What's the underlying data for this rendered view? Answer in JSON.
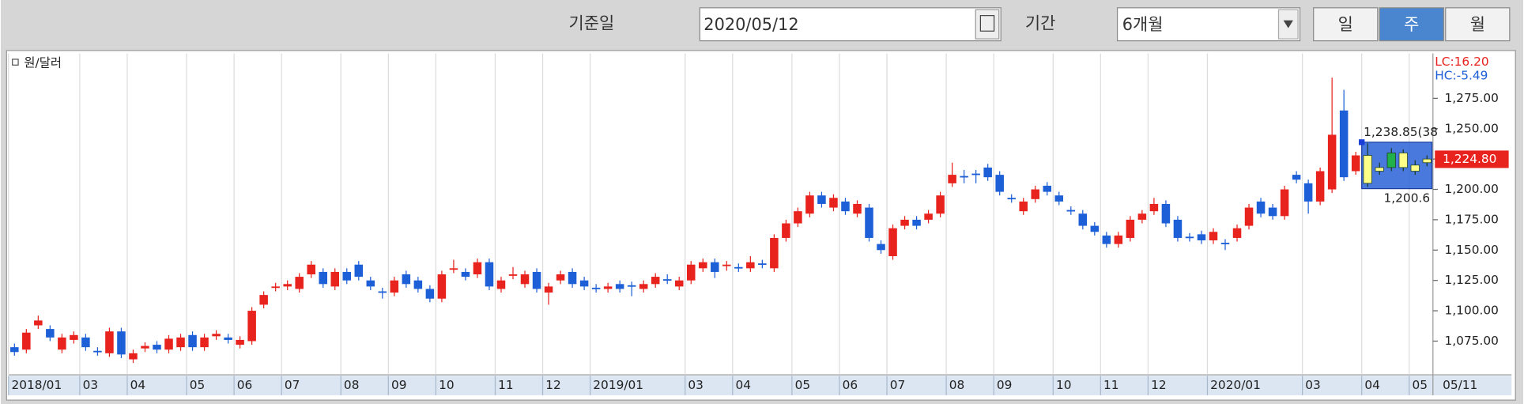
{
  "toolbar": {
    "date_label": "기준일",
    "date": "2020/05/12",
    "period_label": "기간",
    "period": "6개월",
    "buttons": [
      "일",
      "주",
      "월"
    ],
    "selected_button": 1
  },
  "chart_data": {
    "type": "candlestick",
    "legend": "원/달러",
    "candles": [
      [
        1070,
        1073,
        1063,
        1066
      ],
      [
        1068,
        1085,
        1065,
        1082
      ],
      [
        1088,
        1096,
        1085,
        1092
      ],
      [
        1085,
        1088,
        1075,
        1078
      ],
      [
        1068,
        1081,
        1065,
        1078
      ],
      [
        1076,
        1083,
        1073,
        1080
      ],
      [
        1078,
        1081,
        1067,
        1070
      ],
      [
        1067,
        1070,
        1063,
        1066
      ],
      [
        1065,
        1086,
        1062,
        1083
      ],
      [
        1083,
        1086,
        1061,
        1064
      ],
      [
        1060,
        1068,
        1057,
        1065
      ],
      [
        1069,
        1074,
        1066,
        1071
      ],
      [
        1072,
        1075,
        1065,
        1068
      ],
      [
        1068,
        1080,
        1065,
        1077
      ],
      [
        1070,
        1081,
        1067,
        1078
      ],
      [
        1080,
        1083,
        1067,
        1070
      ],
      [
        1070,
        1081,
        1067,
        1078
      ],
      [
        1079,
        1084,
        1076,
        1081
      ],
      [
        1078,
        1081,
        1073,
        1076
      ],
      [
        1072,
        1079,
        1069,
        1076
      ],
      [
        1075,
        1103,
        1072,
        1100
      ],
      [
        1105,
        1116,
        1102,
        1113
      ],
      [
        1119,
        1123,
        1116,
        1120
      ],
      [
        1120,
        1125,
        1117,
        1122
      ],
      [
        1118,
        1131,
        1115,
        1128
      ],
      [
        1130,
        1141,
        1127,
        1138
      ],
      [
        1132,
        1135,
        1119,
        1122
      ],
      [
        1120,
        1135,
        1117,
        1132
      ],
      [
        1132,
        1135,
        1122,
        1125
      ],
      [
        1138,
        1141,
        1125,
        1128
      ],
      [
        1125,
        1128,
        1117,
        1120
      ],
      [
        1116,
        1119,
        1110,
        1115
      ],
      [
        1115,
        1128,
        1112,
        1125
      ],
      [
        1130,
        1133,
        1119,
        1122
      ],
      [
        1125,
        1128,
        1115,
        1118
      ],
      [
        1118,
        1121,
        1107,
        1110
      ],
      [
        1110,
        1133,
        1107,
        1130
      ],
      [
        1134,
        1142,
        1131,
        1135
      ],
      [
        1132,
        1135,
        1125,
        1128
      ],
      [
        1130,
        1143,
        1127,
        1140
      ],
      [
        1140,
        1143,
        1117,
        1120
      ],
      [
        1118,
        1128,
        1115,
        1125
      ],
      [
        1129,
        1136,
        1126,
        1130
      ],
      [
        1122,
        1133,
        1119,
        1130
      ],
      [
        1132,
        1135,
        1115,
        1118
      ],
      [
        1115,
        1123,
        1105,
        1120
      ],
      [
        1125,
        1133,
        1122,
        1130
      ],
      [
        1132,
        1135,
        1119,
        1122
      ],
      [
        1125,
        1128,
        1117,
        1120
      ],
      [
        1119,
        1122,
        1115,
        1118
      ],
      [
        1118,
        1123,
        1115,
        1120
      ],
      [
        1122,
        1125,
        1115,
        1118
      ],
      [
        1121,
        1124,
        1112,
        1120
      ],
      [
        1118,
        1125,
        1115,
        1122
      ],
      [
        1122,
        1131,
        1119,
        1128
      ],
      [
        1126,
        1130,
        1122,
        1125
      ],
      [
        1120,
        1128,
        1117,
        1125
      ],
      [
        1125,
        1141,
        1122,
        1138
      ],
      [
        1135,
        1143,
        1132,
        1140
      ],
      [
        1140,
        1143,
        1127,
        1132
      ],
      [
        1137,
        1141,
        1133,
        1138
      ],
      [
        1136,
        1139,
        1132,
        1135
      ],
      [
        1135,
        1145,
        1132,
        1140
      ],
      [
        1139,
        1142,
        1135,
        1138
      ],
      [
        1135,
        1163,
        1132,
        1160
      ],
      [
        1160,
        1175,
        1157,
        1172
      ],
      [
        1172,
        1185,
        1169,
        1182
      ],
      [
        1180,
        1198,
        1177,
        1195
      ],
      [
        1195,
        1198,
        1185,
        1188
      ],
      [
        1185,
        1196,
        1182,
        1193
      ],
      [
        1190,
        1193,
        1179,
        1182
      ],
      [
        1180,
        1191,
        1177,
        1188
      ],
      [
        1185,
        1188,
        1157,
        1160
      ],
      [
        1155,
        1158,
        1147,
        1150
      ],
      [
        1145,
        1171,
        1142,
        1168
      ],
      [
        1170,
        1178,
        1167,
        1175
      ],
      [
        1175,
        1178,
        1167,
        1170
      ],
      [
        1175,
        1183,
        1172,
        1180
      ],
      [
        1180,
        1198,
        1177,
        1195
      ],
      [
        1205,
        1222,
        1202,
        1212
      ],
      [
        1211,
        1216,
        1205,
        1210
      ],
      [
        1213,
        1216,
        1205,
        1212
      ],
      [
        1218,
        1221,
        1207,
        1210
      ],
      [
        1212,
        1215,
        1195,
        1198
      ],
      [
        1193,
        1196,
        1189,
        1192
      ],
      [
        1182,
        1193,
        1179,
        1190
      ],
      [
        1192,
        1203,
        1189,
        1200
      ],
      [
        1203,
        1206,
        1195,
        1198
      ],
      [
        1195,
        1198,
        1187,
        1190
      ],
      [
        1183,
        1186,
        1179,
        1182
      ],
      [
        1180,
        1183,
        1167,
        1170
      ],
      [
        1170,
        1173,
        1162,
        1165
      ],
      [
        1162,
        1165,
        1152,
        1155
      ],
      [
        1155,
        1165,
        1152,
        1162
      ],
      [
        1160,
        1178,
        1157,
        1175
      ],
      [
        1175,
        1183,
        1172,
        1180
      ],
      [
        1182,
        1193,
        1179,
        1188
      ],
      [
        1188,
        1191,
        1169,
        1172
      ],
      [
        1175,
        1178,
        1157,
        1160
      ],
      [
        1161,
        1164,
        1157,
        1160
      ],
      [
        1163,
        1166,
        1155,
        1158
      ],
      [
        1158,
        1168,
        1155,
        1165
      ],
      [
        1156,
        1159,
        1150,
        1155
      ],
      [
        1160,
        1171,
        1157,
        1168
      ],
      [
        1170,
        1188,
        1167,
        1185
      ],
      [
        1190,
        1193,
        1177,
        1180
      ],
      [
        1185,
        1188,
        1175,
        1178
      ],
      [
        1178,
        1203,
        1175,
        1200
      ],
      [
        1212,
        1215,
        1205,
        1208
      ],
      [
        1205,
        1208,
        1180,
        1190
      ],
      [
        1190,
        1218,
        1187,
        1215
      ],
      [
        1200,
        1292,
        1197,
        1245
      ],
      [
        1265,
        1282,
        1207,
        1210
      ],
      [
        1215,
        1231,
        1212,
        1228
      ],
      [
        1228,
        1238,
        1202,
        1205
      ],
      [
        1218,
        1222,
        1212,
        1215
      ],
      [
        1218,
        1234,
        1215,
        1230
      ],
      [
        1230,
        1233,
        1215,
        1218
      ],
      [
        1220,
        1224,
        1212,
        1215
      ],
      [
        1225,
        1228,
        1219,
        1222
      ]
    ],
    "up_color": "#e8221c",
    "down_color": "#1d5fd6",
    "xlim": [
      -0.5,
      119.5
    ],
    "xticks": [
      {
        "value": -0.5,
        "label": "2018/01"
      },
      {
        "value": 5.5,
        "label": "03"
      },
      {
        "value": 9.5,
        "label": "04"
      },
      {
        "value": 14.5,
        "label": "05"
      },
      {
        "value": 18.5,
        "label": "06"
      },
      {
        "value": 22.5,
        "label": "07"
      },
      {
        "value": 27.5,
        "label": "08"
      },
      {
        "value": 31.5,
        "label": "09"
      },
      {
        "value": 35.5,
        "label": "10"
      },
      {
        "value": 40.5,
        "label": "11"
      },
      {
        "value": 44.5,
        "label": "12"
      },
      {
        "value": 48.5,
        "label": "2019/01"
      },
      {
        "value": 56.5,
        "label": "03"
      },
      {
        "value": 60.5,
        "label": "04"
      },
      {
        "value": 65.5,
        "label": "05"
      },
      {
        "value": 69.5,
        "label": "06"
      },
      {
        "value": 73.5,
        "label": "07"
      },
      {
        "value": 78.5,
        "label": "08"
      },
      {
        "value": 82.5,
        "label": "09"
      },
      {
        "value": 87.5,
        "label": "10"
      },
      {
        "value": 91.5,
        "label": "11"
      },
      {
        "value": 95.5,
        "label": "12"
      },
      {
        "value": 100.5,
        "label": "2020/01"
      },
      {
        "value": 108.5,
        "label": "03"
      },
      {
        "value": 113.5,
        "label": "04"
      },
      {
        "value": 117.5,
        "label": "05"
      }
    ],
    "last_date": "05/11",
    "ylim": [
      1048,
      1312
    ],
    "yticks": [
      {
        "value": 1075,
        "label": "1,075.00"
      },
      {
        "value": 1100,
        "label": "1,100.00"
      },
      {
        "value": 1125,
        "label": "1,125.00"
      },
      {
        "value": 1150,
        "label": "1,150.00"
      },
      {
        "value": 1175,
        "label": "1,175.00"
      },
      {
        "value": 1200,
        "label": "1,200.00"
      },
      {
        "value": 1225,
        "label": "1,225.00"
      },
      {
        "value": 1250,
        "label": "1,250.00"
      },
      {
        "value": 1275,
        "label": "1,275.00"
      }
    ],
    "grid": "x",
    "lc_label": "LC:16.20",
    "hc_label": "HC:-5.49",
    "current": {
      "value": 1224.8,
      "label": "1,224.80"
    },
    "range_box": {
      "values": [
        1238.85,
        1200.6
      ],
      "value_labels": [
        "1,238.85(38",
        "1,200.6"
      ]
    }
  }
}
